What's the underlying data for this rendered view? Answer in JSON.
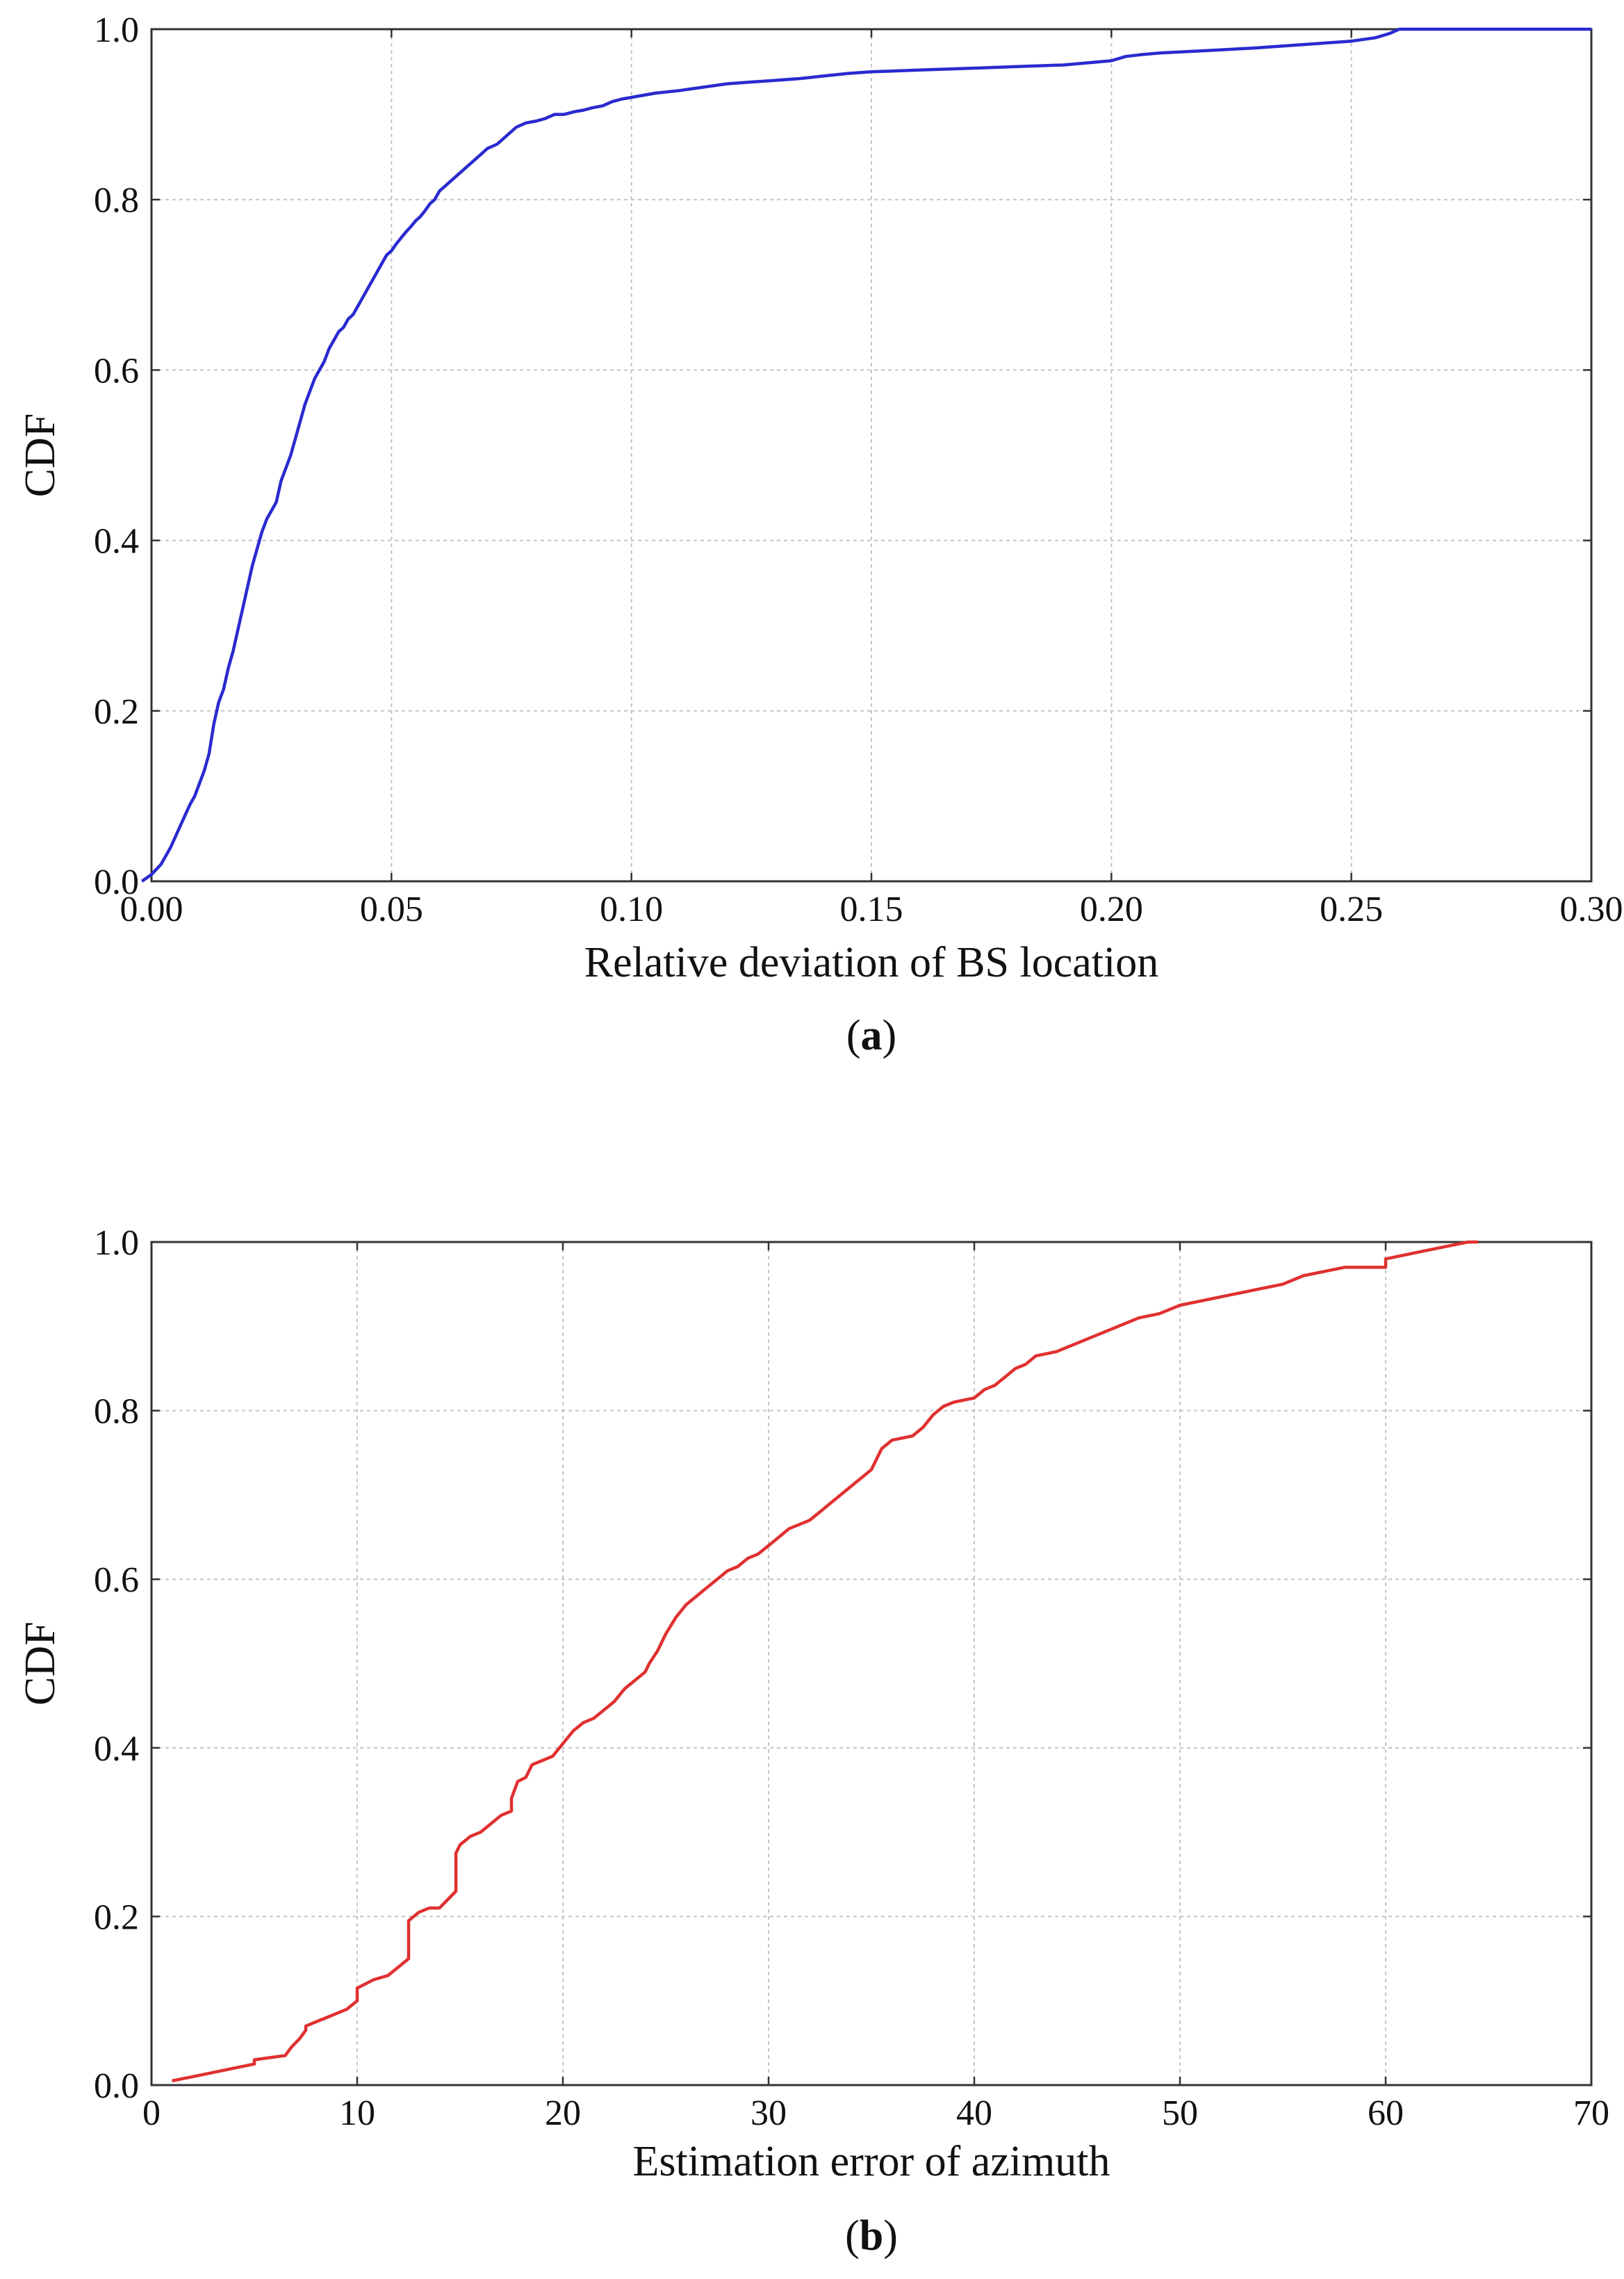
{
  "chart_data": [
    {
      "id": "a",
      "type": "line",
      "caption_letter": "a",
      "xlabel": "Relative deviation of BS location",
      "ylabel": "CDF",
      "xlim": [
        0.0,
        0.3
      ],
      "ylim": [
        0.0,
        1.0
      ],
      "xticks": [
        "0.00",
        "0.05",
        "0.10",
        "0.15",
        "0.20",
        "0.25",
        "0.30"
      ],
      "yticks": [
        "0.0",
        "0.2",
        "0.4",
        "0.6",
        "0.8",
        "1.0"
      ],
      "grid": true,
      "color": "#2a2ad0",
      "series": [
        {
          "x": [
            -0.002,
            0.0,
            0.002,
            0.004,
            0.006,
            0.008,
            0.009,
            0.01,
            0.011,
            0.012,
            0.013,
            0.014,
            0.015,
            0.016,
            0.017,
            0.018,
            0.019,
            0.02,
            0.021,
            0.022,
            0.023,
            0.024,
            0.025,
            0.026,
            0.027,
            0.028,
            0.029,
            0.03,
            0.031,
            0.032,
            0.033,
            0.034,
            0.035,
            0.036,
            0.037,
            0.038,
            0.039,
            0.04,
            0.041,
            0.042,
            0.043,
            0.044,
            0.045,
            0.046,
            0.047,
            0.048,
            0.049,
            0.05,
            0.051,
            0.052,
            0.053,
            0.054,
            0.055,
            0.056,
            0.057,
            0.058,
            0.059,
            0.06,
            0.062,
            0.064,
            0.066,
            0.068,
            0.07,
            0.072,
            0.074,
            0.076,
            0.078,
            0.08,
            0.082,
            0.084,
            0.086,
            0.088,
            0.09,
            0.092,
            0.094,
            0.096,
            0.098,
            0.1,
            0.102,
            0.105,
            0.11,
            0.115,
            0.12,
            0.125,
            0.13,
            0.135,
            0.14,
            0.145,
            0.15,
            0.16,
            0.17,
            0.18,
            0.19,
            0.2,
            0.203,
            0.206,
            0.21,
            0.22,
            0.23,
            0.24,
            0.25,
            0.255,
            0.258,
            0.26,
            0.262,
            0.27,
            0.28,
            0.29,
            0.3
          ],
          "y": [
            0.0,
            0.008,
            0.02,
            0.04,
            0.065,
            0.09,
            0.1,
            0.115,
            0.13,
            0.15,
            0.185,
            0.21,
            0.225,
            0.25,
            0.27,
            0.295,
            0.32,
            0.345,
            0.37,
            0.39,
            0.41,
            0.425,
            0.435,
            0.445,
            0.47,
            0.485,
            0.5,
            0.52,
            0.54,
            0.56,
            0.575,
            0.59,
            0.6,
            0.61,
            0.625,
            0.635,
            0.645,
            0.65,
            0.66,
            0.665,
            0.675,
            0.685,
            0.695,
            0.705,
            0.715,
            0.725,
            0.735,
            0.74,
            0.748,
            0.755,
            0.762,
            0.768,
            0.775,
            0.78,
            0.787,
            0.795,
            0.8,
            0.81,
            0.82,
            0.83,
            0.84,
            0.85,
            0.86,
            0.865,
            0.875,
            0.885,
            0.89,
            0.892,
            0.895,
            0.9,
            0.9,
            0.903,
            0.905,
            0.908,
            0.91,
            0.915,
            0.918,
            0.92,
            0.922,
            0.925,
            0.928,
            0.932,
            0.936,
            0.938,
            0.94,
            0.942,
            0.945,
            0.948,
            0.95,
            0.952,
            0.954,
            0.956,
            0.958,
            0.963,
            0.968,
            0.97,
            0.972,
            0.975,
            0.978,
            0.982,
            0.986,
            0.99,
            0.995,
            1.0,
            1.0,
            1.0,
            1.0,
            1.0,
            1.0
          ]
        }
      ]
    },
    {
      "id": "b",
      "type": "line",
      "caption_letter": "b",
      "xlabel": "Estimation error of azimuth",
      "ylabel": "CDF",
      "xlim": [
        0,
        70
      ],
      "ylim": [
        0.0,
        1.0
      ],
      "xticks": [
        "0",
        "10",
        "20",
        "30",
        "40",
        "50",
        "60",
        "70"
      ],
      "yticks": [
        "0.0",
        "0.2",
        "0.4",
        "0.6",
        "0.8",
        "1.0"
      ],
      "grid": true,
      "color": "#e03030",
      "series": [
        {
          "x": [
            1.0,
            2.0,
            3.0,
            4.0,
            5.0,
            5.0,
            6.5,
            6.8,
            7.2,
            7.5,
            7.5,
            8.0,
            8.5,
            9.0,
            9.5,
            10.0,
            10.0,
            10.8,
            11.5,
            12.0,
            12.5,
            12.5,
            13.0,
            13.5,
            14.0,
            14.8,
            14.8,
            15.0,
            15.5,
            16.0,
            16.5,
            17.0,
            17.5,
            17.5,
            17.8,
            18.2,
            18.5,
            19.0,
            19.5,
            20.0,
            20.5,
            21.0,
            21.5,
            22.0,
            22.5,
            23.0,
            23.5,
            24.0,
            24.2,
            24.6,
            25.0,
            25.5,
            26.0,
            26.5,
            27.0,
            27.5,
            28.0,
            28.5,
            29.0,
            29.5,
            30.0,
            30.5,
            31.0,
            32.0,
            32.5,
            33.0,
            33.5,
            34.0,
            34.5,
            35.0,
            35.5,
            36.0,
            37.0,
            37.5,
            38.0,
            38.5,
            39.0,
            40.0,
            40.5,
            41.0,
            41.5,
            42.0,
            42.5,
            43.0,
            44.0,
            44.5,
            45.0,
            46.0,
            47.0,
            48.0,
            49.0,
            50.0,
            51.0,
            52.0,
            53.0,
            54.0,
            55.0,
            56.0,
            58.0,
            60.0,
            60.0,
            61.0,
            62.0,
            63.0,
            64.0,
            64.5
          ],
          "y": [
            0.005,
            0.01,
            0.015,
            0.02,
            0.025,
            0.03,
            0.035,
            0.045,
            0.055,
            0.065,
            0.07,
            0.075,
            0.08,
            0.085,
            0.09,
            0.1,
            0.115,
            0.125,
            0.13,
            0.14,
            0.15,
            0.195,
            0.205,
            0.21,
            0.21,
            0.23,
            0.275,
            0.285,
            0.295,
            0.3,
            0.31,
            0.32,
            0.325,
            0.34,
            0.36,
            0.365,
            0.38,
            0.385,
            0.39,
            0.405,
            0.42,
            0.43,
            0.435,
            0.445,
            0.455,
            0.47,
            0.48,
            0.49,
            0.5,
            0.515,
            0.535,
            0.555,
            0.57,
            0.58,
            0.59,
            0.6,
            0.61,
            0.615,
            0.625,
            0.63,
            0.64,
            0.65,
            0.66,
            0.67,
            0.68,
            0.69,
            0.7,
            0.71,
            0.72,
            0.73,
            0.755,
            0.765,
            0.77,
            0.78,
            0.795,
            0.805,
            0.81,
            0.815,
            0.825,
            0.83,
            0.84,
            0.85,
            0.855,
            0.865,
            0.87,
            0.875,
            0.88,
            0.89,
            0.9,
            0.91,
            0.915,
            0.925,
            0.93,
            0.935,
            0.94,
            0.945,
            0.95,
            0.96,
            0.97,
            0.97,
            0.98,
            0.985,
            0.99,
            0.995,
            1.0,
            1.0
          ]
        }
      ]
    }
  ]
}
